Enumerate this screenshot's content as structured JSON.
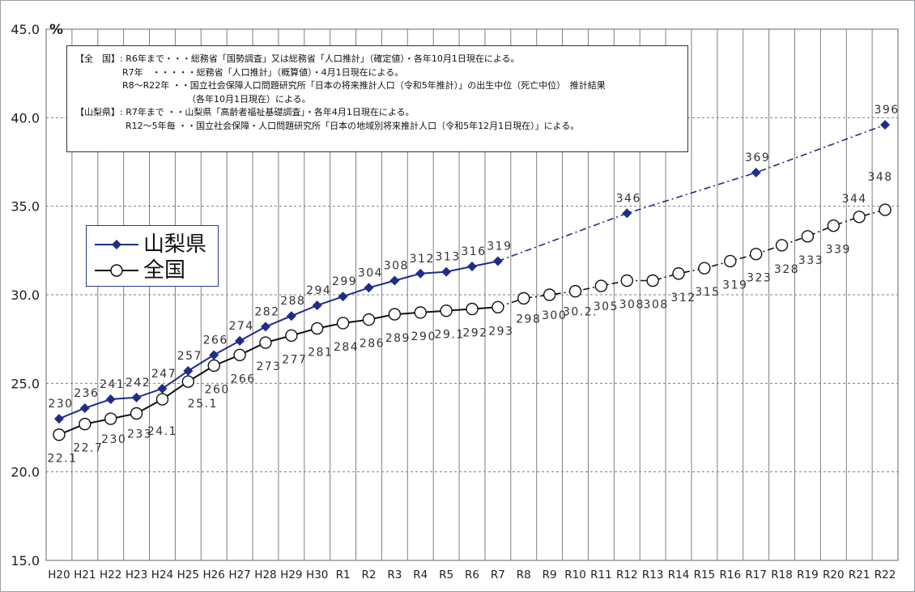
{
  "chart_data": {
    "type": "line",
    "unit": "%",
    "ylim": [
      15.0,
      45.0
    ],
    "yticks": [
      15.0,
      20.0,
      25.0,
      30.0,
      35.0,
      40.0,
      45.0
    ],
    "ytick_labels": [
      "15.0",
      "20.0",
      "25.0",
      "30.0",
      "35.0",
      "40.0",
      "45.0"
    ],
    "grid": true,
    "legend_position": "left",
    "categories": [
      "H20",
      "H21",
      "H22",
      "H23",
      "H24",
      "H25",
      "H26",
      "H27",
      "H28",
      "H29",
      "H30",
      "R1",
      "R2",
      "R3",
      "R4",
      "R5",
      "R6",
      "R7",
      "R8",
      "R9",
      "R10",
      "R11",
      "R12",
      "R13",
      "R14",
      "R15",
      "R16",
      "R17",
      "R18",
      "R19",
      "R20",
      "R21",
      "R22"
    ],
    "series": [
      {
        "name": "山梨県",
        "color": "#1f2d8a",
        "marker": "diamond",
        "points": [
          {
            "x": "H20",
            "y": 23.0,
            "label": "230"
          },
          {
            "x": "H21",
            "y": 23.6,
            "label": "236"
          },
          {
            "x": "H22",
            "y": 24.1,
            "label": "241"
          },
          {
            "x": "H23",
            "y": 24.2,
            "label": "242"
          },
          {
            "x": "H24",
            "y": 24.7,
            "label": "247"
          },
          {
            "x": "H25",
            "y": 25.7,
            "label": "257"
          },
          {
            "x": "H26",
            "y": 26.6,
            "label": "266"
          },
          {
            "x": "H27",
            "y": 27.4,
            "label": "274"
          },
          {
            "x": "H28",
            "y": 28.2,
            "label": "282"
          },
          {
            "x": "H29",
            "y": 28.8,
            "label": "288"
          },
          {
            "x": "H30",
            "y": 29.4,
            "label": "294"
          },
          {
            "x": "R1",
            "y": 29.9,
            "label": "299"
          },
          {
            "x": "R2",
            "y": 30.4,
            "label": "304"
          },
          {
            "x": "R3",
            "y": 30.8,
            "label": "308"
          },
          {
            "x": "R4",
            "y": 31.2,
            "label": "312"
          },
          {
            "x": "R5",
            "y": 31.3,
            "label": "313"
          },
          {
            "x": "R6",
            "y": 31.6,
            "label": "316"
          },
          {
            "x": "R7",
            "y": 31.9,
            "label": "319"
          },
          {
            "x": "R12",
            "y": 34.6,
            "label": "346"
          },
          {
            "x": "R17",
            "y": 36.9,
            "label": "369"
          },
          {
            "x": "R22",
            "y": 39.6,
            "label": "396"
          }
        ],
        "projection_from": "R7"
      },
      {
        "name": "全国",
        "color": "#111111",
        "marker": "circle",
        "points": [
          {
            "x": "H20",
            "y": 22.1,
            "label": "22.1"
          },
          {
            "x": "H21",
            "y": 22.7,
            "label": "22.7"
          },
          {
            "x": "H22",
            "y": 23.0,
            "label": "230"
          },
          {
            "x": "H23",
            "y": 23.3,
            "label": "233"
          },
          {
            "x": "H24",
            "y": 24.1,
            "label": "24.1"
          },
          {
            "x": "H25",
            "y": 25.1,
            "label": "25.1"
          },
          {
            "x": "H26",
            "y": 26.0,
            "label": "260"
          },
          {
            "x": "H27",
            "y": 26.6,
            "label": "266"
          },
          {
            "x": "H28",
            "y": 27.3,
            "label": "273"
          },
          {
            "x": "H29",
            "y": 27.7,
            "label": "277"
          },
          {
            "x": "H30",
            "y": 28.1,
            "label": "281"
          },
          {
            "x": "R1",
            "y": 28.4,
            "label": "284"
          },
          {
            "x": "R2",
            "y": 28.6,
            "label": "286"
          },
          {
            "x": "R3",
            "y": 28.9,
            "label": "289"
          },
          {
            "x": "R4",
            "y": 29.0,
            "label": "290"
          },
          {
            "x": "R5",
            "y": 29.1,
            "label": "29.1"
          },
          {
            "x": "R6",
            "y": 29.2,
            "label": "292"
          },
          {
            "x": "R7",
            "y": 29.3,
            "label": "293"
          },
          {
            "x": "R8",
            "y": 29.8,
            "label": "298"
          },
          {
            "x": "R9",
            "y": 30.0,
            "label": "300"
          },
          {
            "x": "R10",
            "y": 30.2,
            "label": "30.2."
          },
          {
            "x": "R11",
            "y": 30.5,
            "label": "305"
          },
          {
            "x": "R12",
            "y": 30.8,
            "label": "308"
          },
          {
            "x": "R13",
            "y": 30.8,
            "label": "308"
          },
          {
            "x": "R14",
            "y": 31.2,
            "label": "312"
          },
          {
            "x": "R15",
            "y": 31.5,
            "label": "315"
          },
          {
            "x": "R16",
            "y": 31.9,
            "label": "319"
          },
          {
            "x": "R17",
            "y": 32.3,
            "label": "323"
          },
          {
            "x": "R18",
            "y": 32.8,
            "label": "328"
          },
          {
            "x": "R19",
            "y": 33.3,
            "label": "333"
          },
          {
            "x": "R20",
            "y": 33.9,
            "label": "339"
          },
          {
            "x": "R21",
            "y": 34.4,
            "label": "344"
          },
          {
            "x": "R22",
            "y": 34.8,
            "label": "348"
          }
        ],
        "projection_from": "R7"
      }
    ]
  },
  "notes": [
    "【全　国】: R6年まで・・・総務省「国勢調査」又は総務省「人口推計」（確定値）・各年10月1日現在による。",
    "R7年　・・・・・総務省「人口推計」（概算値）・4月1日現在による。",
    "R8～R22年 ・・国立社会保障人口問題研究所「日本の将来推計人口（令和5年推計）」の出生中位（死亡中位）　推計結果",
    "（各年10月1日現在）による。",
    "【山梨県】: R7年まで ・・山梨県「高齢者福祉基礎調査」・各年4月1日現在による。",
    "R12～5年毎 ・・国立社会保障・人口問題研究所「日本の地域別将来推計人口（令和5年12月1日現在）」による。"
  ]
}
